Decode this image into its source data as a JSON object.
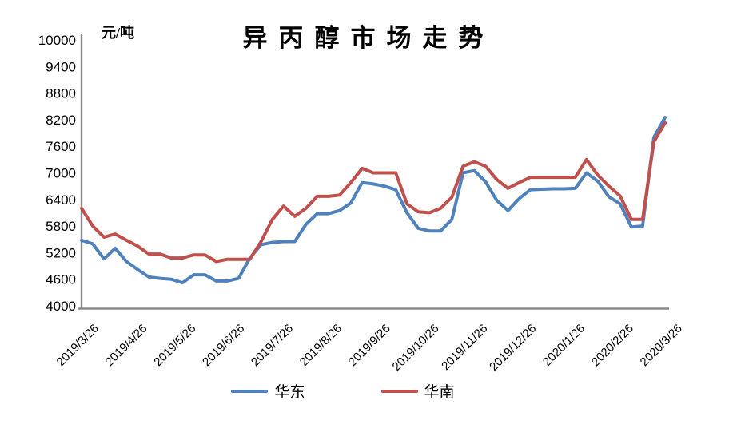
{
  "title": "异丙醇市场走势",
  "y_axis": {
    "unit": "元/吨",
    "ticks": [
      10000,
      9400,
      8800,
      8200,
      7600,
      7000,
      6400,
      5800,
      5200,
      4600,
      4000
    ]
  },
  "legend": [
    {
      "label": "华东",
      "color": "#4F81BD"
    },
    {
      "label": "华南",
      "color": "#C0504D"
    }
  ],
  "colors": {
    "axis": "#8a8a8a",
    "east": "#4F81BD",
    "south": "#C0504D"
  },
  "chart_data": {
    "type": "line",
    "title": "异丙醇市场走势",
    "ylabel": "元/吨",
    "ylim": [
      4000,
      10000
    ],
    "y_tick_step": 600,
    "grid": false,
    "legend_position": "bottom",
    "x_tick_labels": [
      "2019/3/26",
      "2019/4/26",
      "2019/5/26",
      "2019/6/26",
      "2019/7/26",
      "2019/8/26",
      "2019/9/26",
      "2019/10/26",
      "2019/11/26",
      "2019/12/26",
      "2020/1/26",
      "2020/2/26",
      "2020/3/26"
    ],
    "x_frequency": "weekly",
    "series": [
      {
        "name": "华东",
        "color": "#4F81BD",
        "values": [
          5480,
          5400,
          5060,
          5300,
          5000,
          4820,
          4650,
          4620,
          4600,
          4520,
          4700,
          4700,
          4560,
          4560,
          4620,
          5080,
          5380,
          5430,
          5450,
          5450,
          5840,
          6080,
          6080,
          6150,
          6320,
          6780,
          6750,
          6700,
          6620,
          6100,
          5750,
          5690,
          5690,
          5950,
          7000,
          7050,
          6800,
          6380,
          6150,
          6420,
          6620,
          6630,
          6640,
          6640,
          6650,
          7000,
          6810,
          6460,
          6300,
          5780,
          5800,
          7800,
          8250
        ]
      },
      {
        "name": "华南",
        "color": "#C0504D",
        "values": [
          6200,
          5800,
          5550,
          5620,
          5480,
          5350,
          5170,
          5170,
          5080,
          5080,
          5150,
          5150,
          5000,
          5050,
          5050,
          5050,
          5450,
          5950,
          6250,
          6020,
          6200,
          6470,
          6470,
          6500,
          6780,
          7100,
          7000,
          7000,
          7000,
          6300,
          6120,
          6100,
          6200,
          6450,
          7150,
          7250,
          7150,
          6850,
          6650,
          6780,
          6900,
          6900,
          6900,
          6900,
          6900,
          7300,
          6950,
          6700,
          6480,
          5950,
          5950,
          7700,
          8130
        ]
      }
    ]
  }
}
